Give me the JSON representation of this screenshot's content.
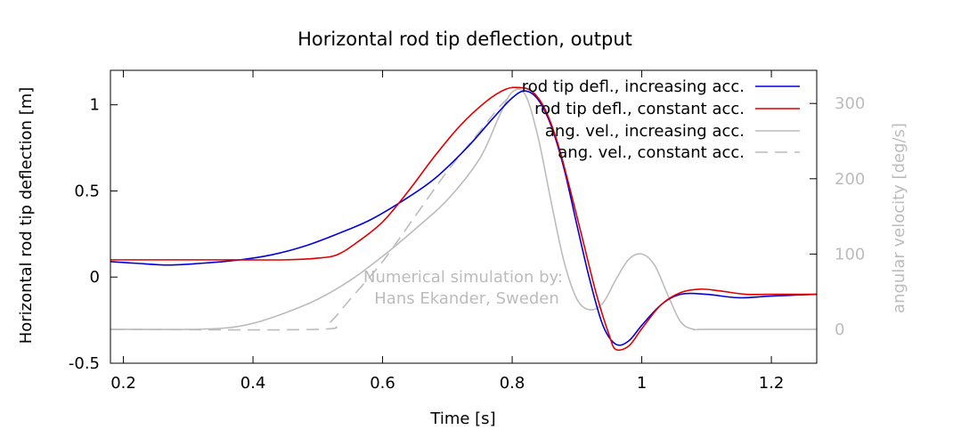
{
  "chart_data": {
    "type": "line",
    "title": "Horizontal rod tip deflection, output",
    "xlabel": "Time [s]",
    "ylabel": "Horizontal rod tip deflection [m]",
    "y2label": "angular velocity [deg/s]",
    "xlim": [
      0.18,
      1.27
    ],
    "ylim": [
      -0.5,
      1.2
    ],
    "y2lim": [
      -45,
      344
    ],
    "x_ticks": [
      0.2,
      0.4,
      0.6,
      0.8,
      1.0,
      1.2
    ],
    "x_tick_labels": [
      "0.2",
      "0.4",
      "0.6",
      "0.8",
      "1",
      "1.2"
    ],
    "y_ticks": [
      -0.5,
      0,
      0.5,
      1
    ],
    "y_tick_labels": [
      "-0.5",
      "0",
      "0.5",
      "1"
    ],
    "y2_ticks": [
      0,
      100,
      200,
      300
    ],
    "y2_tick_labels": [
      "0",
      "100",
      "200",
      "300"
    ],
    "grid": false,
    "legend_position": "top-right",
    "annotation": [
      "Numerical simulation by:",
      "Hans Ekander, Sweden"
    ],
    "colors": {
      "blue": "#0000dd",
      "red": "#e00000",
      "gray": "#bcbcbc"
    },
    "series": [
      {
        "name": "rod tip defl., increasing acc.",
        "axis": "left",
        "style": "solid",
        "color": "#0000dd",
        "x": [
          0.18,
          0.22,
          0.27,
          0.32,
          0.38,
          0.43,
          0.48,
          0.53,
          0.58,
          0.63,
          0.68,
          0.73,
          0.77,
          0.8,
          0.82,
          0.84,
          0.86,
          0.88,
          0.9,
          0.92,
          0.94,
          0.96,
          0.98,
          1.0,
          1.03,
          1.06,
          1.1,
          1.15,
          1.2,
          1.27
        ],
        "y": [
          0.09,
          0.08,
          0.07,
          0.08,
          0.1,
          0.13,
          0.18,
          0.25,
          0.33,
          0.44,
          0.57,
          0.75,
          0.92,
          1.04,
          1.08,
          1.03,
          0.88,
          0.63,
          0.3,
          -0.02,
          -0.28,
          -0.39,
          -0.37,
          -0.28,
          -0.16,
          -0.1,
          -0.1,
          -0.12,
          -0.11,
          -0.1
        ]
      },
      {
        "name": "rod tip defl., constant acc.",
        "axis": "left",
        "style": "solid",
        "color": "#e00000",
        "x": [
          0.18,
          0.25,
          0.35,
          0.45,
          0.5,
          0.53,
          0.56,
          0.6,
          0.64,
          0.68,
          0.72,
          0.76,
          0.79,
          0.81,
          0.83,
          0.85,
          0.87,
          0.89,
          0.91,
          0.93,
          0.95,
          0.96,
          0.98,
          1.0,
          1.03,
          1.06,
          1.09,
          1.12,
          1.16,
          1.2,
          1.27
        ],
        "y": [
          0.1,
          0.1,
          0.1,
          0.1,
          0.11,
          0.13,
          0.2,
          0.32,
          0.5,
          0.7,
          0.88,
          1.02,
          1.09,
          1.1,
          1.08,
          0.98,
          0.78,
          0.5,
          0.2,
          -0.1,
          -0.34,
          -0.42,
          -0.4,
          -0.3,
          -0.16,
          -0.09,
          -0.07,
          -0.08,
          -0.1,
          -0.1,
          -0.1
        ]
      },
      {
        "name": "ang. vel., increasing acc.",
        "axis": "right",
        "style": "solid",
        "color": "#bcbcbc",
        "x": [
          0.18,
          0.3,
          0.36,
          0.4,
          0.45,
          0.5,
          0.55,
          0.6,
          0.65,
          0.7,
          0.75,
          0.78,
          0.8,
          0.82,
          0.84,
          0.86,
          0.88,
          0.9,
          0.92,
          0.94,
          0.96,
          0.98,
          1.0,
          1.02,
          1.04,
          1.06,
          1.08,
          1.1,
          1.27
        ],
        "y": [
          0,
          0,
          2,
          8,
          22,
          40,
          65,
          97,
          133,
          172,
          227,
          283,
          315,
          312,
          255,
          170,
          90,
          40,
          26,
          35,
          66,
          93,
          100,
          85,
          46,
          10,
          0,
          0,
          0
        ]
      },
      {
        "name": "ang. vel., constant acc.",
        "axis": "right",
        "style": "dashed",
        "color": "#bcbcbc",
        "x": [
          0.18,
          0.5,
          0.52,
          0.55,
          0.6,
          0.65,
          0.7,
          0.75,
          0.78,
          0.8
        ],
        "y": [
          0,
          0,
          10,
          40,
          90,
          150,
          210,
          263,
          295,
          312
        ]
      }
    ]
  }
}
